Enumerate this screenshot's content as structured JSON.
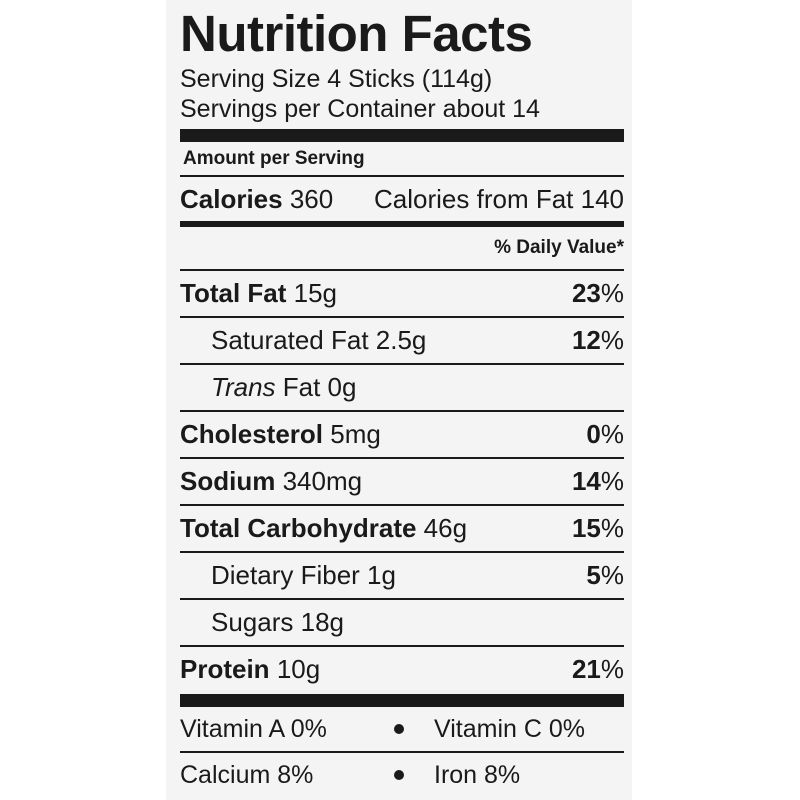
{
  "label": {
    "title": "Nutrition Facts",
    "serving_size": "Serving Size 4 Sticks (114g)",
    "servings_per_container": "Servings per Container about 14",
    "amount_per_serving": "Amount per Serving",
    "calories_label": "Calories",
    "calories_value": "360",
    "calories_from_fat": "Calories from Fat 140",
    "daily_value_header": "% Daily Value*",
    "nutrients": [
      {
        "name": "Total Fat",
        "amount": "15g",
        "pct": "23"
      },
      {
        "name": "Saturated Fat 2.5g",
        "pct": "12"
      },
      {
        "italic_prefix": "Trans",
        "name": "Fat 0g"
      },
      {
        "name": "Cholesterol",
        "amount": "5mg",
        "pct": "0"
      },
      {
        "name": "Sodium",
        "amount": "340mg",
        "pct": "14"
      },
      {
        "name": "Total Carbohydrate",
        "amount": "46g",
        "pct": "15"
      },
      {
        "name": "Dietary Fiber 1g",
        "pct": "5"
      },
      {
        "name": "Sugars 18g"
      },
      {
        "name": "Protein",
        "amount": "10g",
        "pct": "21"
      }
    ],
    "percent_symbol": "%",
    "vitamins": [
      {
        "left": "Vitamin A 0%",
        "right": "Vitamin C 0%"
      },
      {
        "left": "Calcium 8%",
        "right": "Iron 8%"
      }
    ]
  }
}
